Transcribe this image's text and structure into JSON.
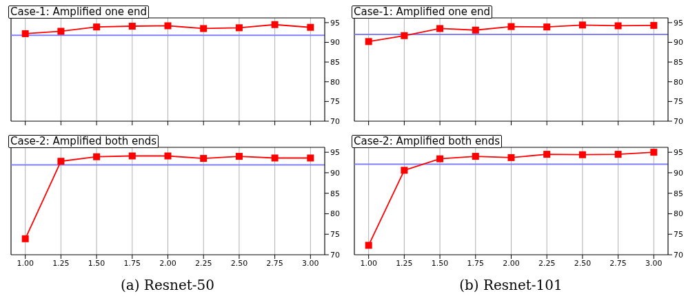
{
  "chart_data": [
    {
      "type": "line",
      "title": "Case-1: Amplified one end",
      "x": [
        1,
        1.25,
        1.5,
        1.75,
        2,
        2.25,
        2.5,
        2.75,
        3
      ],
      "series": [
        {
          "color": "#ff0000",
          "values": [
            92.2,
            92.8,
            93.9,
            94.1,
            94.2,
            93.5,
            93.7,
            94.5,
            93.8
          ]
        }
      ],
      "xlim": [
        0.9,
        3.1
      ],
      "xticks": [
        1,
        1.25,
        1.5,
        1.75,
        2,
        2.25,
        2.5,
        2.75,
        3
      ],
      "ylim": [
        70,
        96.2
      ],
      "yticks": [
        70,
        75,
        80,
        85,
        90,
        95
      ],
      "tick_labels": "y",
      "grid": "x",
      "marker": "square",
      "ref_lines": [
        {
          "axis": "y",
          "value": 91.8,
          "color": "#8080ff"
        }
      ]
    },
    {
      "type": "line",
      "title": "Case-1: Amplified one end",
      "x": [
        1,
        1.25,
        1.5,
        1.75,
        2,
        2.25,
        2.5,
        2.75,
        3
      ],
      "series": [
        {
          "color": "#ff0000",
          "values": [
            90.2,
            91.7,
            93.5,
            93.1,
            94.0,
            93.9,
            94.4,
            94.2,
            94.3
          ]
        }
      ],
      "xlim": [
        0.9,
        3.1
      ],
      "xticks": [
        1,
        1.25,
        1.5,
        1.75,
        2,
        2.25,
        2.5,
        2.75,
        3
      ],
      "ylim": [
        70,
        96.2
      ],
      "yticks": [
        70,
        75,
        80,
        85,
        90,
        95
      ],
      "tick_labels": "y",
      "grid": "x",
      "marker": "square",
      "ref_lines": [
        {
          "axis": "y",
          "value": 92.0,
          "color": "#8080ff"
        }
      ]
    },
    {
      "type": "line",
      "title": "Case-2: Amplified both ends",
      "xlabel": "(a) Resnet-50",
      "x": [
        1,
        1.25,
        1.5,
        1.75,
        2,
        2.25,
        2.5,
        2.75,
        3
      ],
      "series": [
        {
          "color": "#ff0000",
          "values": [
            73.9,
            92.8,
            93.9,
            94.1,
            94.1,
            93.5,
            94.0,
            93.6,
            93.6
          ]
        }
      ],
      "xlim": [
        0.9,
        3.1
      ],
      "xticks": [
        {
          "value": 1,
          "label": "1.00"
        },
        {
          "value": 1.25,
          "label": "1.25"
        },
        {
          "value": 1.5,
          "label": "1.50"
        },
        {
          "value": 1.75,
          "label": "1.75"
        },
        {
          "value": 2,
          "label": "2.00"
        },
        {
          "value": 2.25,
          "label": "2.25"
        },
        {
          "value": 2.5,
          "label": "2.50"
        },
        {
          "value": 2.75,
          "label": "2.75"
        },
        {
          "value": 3,
          "label": "3.00"
        }
      ],
      "ylim": [
        70,
        96.2
      ],
      "yticks": [
        70,
        75,
        80,
        85,
        90,
        95
      ],
      "grid": "x",
      "marker": "square",
      "ref_lines": [
        {
          "axis": "y",
          "value": 91.9,
          "color": "#8080ff"
        }
      ]
    },
    {
      "type": "line",
      "title": "Case-2: Amplified both ends",
      "xlabel": "(b) Resnet-101",
      "x": [
        1,
        1.25,
        1.5,
        1.75,
        2,
        2.25,
        2.5,
        2.75,
        3
      ],
      "series": [
        {
          "color": "#ff0000",
          "values": [
            72.3,
            90.6,
            93.4,
            94.0,
            93.7,
            94.5,
            94.4,
            94.5,
            95.0
          ]
        }
      ],
      "xlim": [
        0.9,
        3.1
      ],
      "xticks": [
        {
          "value": 1,
          "label": "1.00"
        },
        {
          "value": 1.25,
          "label": "1.25"
        },
        {
          "value": 1.5,
          "label": "1.50"
        },
        {
          "value": 1.75,
          "label": "1.75"
        },
        {
          "value": 2,
          "label": "2.00"
        },
        {
          "value": 2.25,
          "label": "2.25"
        },
        {
          "value": 2.5,
          "label": "2.50"
        },
        {
          "value": 2.75,
          "label": "2.75"
        },
        {
          "value": 3,
          "label": "3.00"
        }
      ],
      "ylim": [
        70,
        96.2
      ],
      "yticks": [
        70,
        75,
        80,
        85,
        90,
        95
      ],
      "grid": "x",
      "marker": "square",
      "ref_lines": [
        {
          "axis": "y",
          "value": 92.1,
          "color": "#8080ff"
        }
      ]
    }
  ]
}
